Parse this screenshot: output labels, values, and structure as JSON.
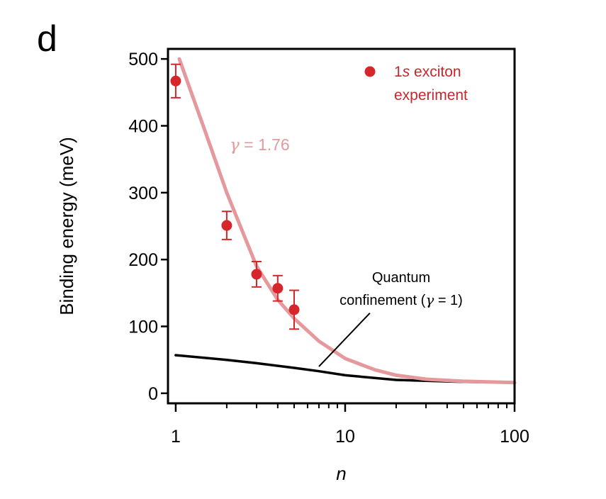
{
  "panel_label": "d",
  "chart_data": {
    "type": "scatter",
    "xlabel": "n",
    "ylabel": "Binding energy (meV)",
    "xscale": "log",
    "xlim": [
      0.9,
      100
    ],
    "ylim": [
      -15,
      515
    ],
    "x_ticks": [
      {
        "value": 1,
        "label": "1"
      },
      {
        "value": 10,
        "label": "10"
      },
      {
        "value": 100,
        "label": "100"
      }
    ],
    "y_ticks": [
      {
        "value": 0,
        "label": "0"
      },
      {
        "value": 100,
        "label": "100"
      },
      {
        "value": 200,
        "label": "200"
      },
      {
        "value": 300,
        "label": "300"
      },
      {
        "value": 400,
        "label": "400"
      },
      {
        "value": 500,
        "label": "500"
      }
    ],
    "grid": false,
    "legend": {
      "position": "top-right",
      "entry_prefix": "1",
      "entry_italic": "s",
      "entry_suffix": " exciton",
      "entry_line2": "experiment"
    },
    "experiment": {
      "color": "#d7262b",
      "points": [
        {
          "x": 1,
          "y": 467,
          "err": 25
        },
        {
          "x": 2,
          "y": 251,
          "err": 21
        },
        {
          "x": 3,
          "y": 178,
          "err": 19
        },
        {
          "x": 4,
          "y": 157,
          "err": 19
        },
        {
          "x": 5,
          "y": 125,
          "err": 29
        }
      ]
    },
    "fit_curve": {
      "color": "#e5999c",
      "label_symbol": "γ",
      "label_value": " = 1.76",
      "points": [
        [
          1.05,
          500
        ],
        [
          1.5,
          390
        ],
        [
          2,
          300
        ],
        [
          3,
          190
        ],
        [
          4,
          140
        ],
        [
          5,
          112
        ],
        [
          7,
          78
        ],
        [
          10,
          52
        ],
        [
          15,
          35
        ],
        [
          20,
          27
        ],
        [
          30,
          21
        ],
        [
          50,
          18
        ],
        [
          100,
          16
        ]
      ]
    },
    "quantum_curve": {
      "color": "#000000",
      "label_line1": "Quantum",
      "label_line2_prefix": "confinement (",
      "label_symbol": "γ",
      "label_line2_suffix": " = 1)",
      "points": [
        [
          1,
          57
        ],
        [
          2,
          50
        ],
        [
          3,
          45
        ],
        [
          5,
          38
        ],
        [
          7,
          33
        ],
        [
          10,
          27
        ],
        [
          20,
          20
        ],
        [
          50,
          17
        ],
        [
          100,
          16
        ]
      ]
    }
  }
}
